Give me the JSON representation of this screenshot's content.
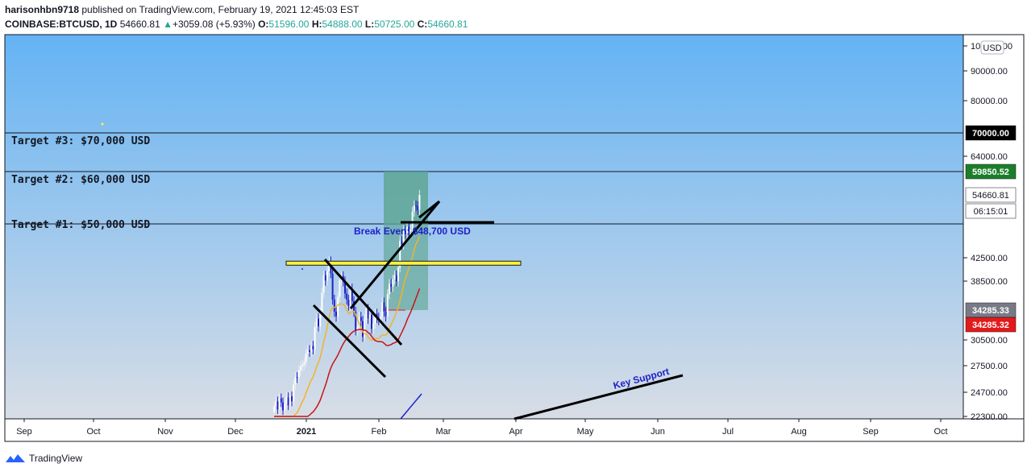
{
  "header": {
    "author": "harisonhbn9718",
    "published_text": "published on TradingView.com, February 19, 2021 12:45:03 EST",
    "symbol": "COINBASE:BTCUSD, 1D",
    "last": "54660.81",
    "change_arrow": "▲",
    "change": "+3059.08 (+5.93%)",
    "o_label": "O:",
    "o_value": "51596.00",
    "h_label": "H:",
    "h_value": "54888.00",
    "l_label": "L:",
    "l_value": "50725.00",
    "c_label": "C:",
    "c_value": "54660.81"
  },
  "chart_data": {
    "type": "candlestick",
    "currency": "USD",
    "x_ticks": [
      "Sep",
      "Oct",
      "Nov",
      "Dec",
      "2021",
      "Feb",
      "Mar",
      "Apr",
      "May",
      "Jun",
      "Jul",
      "Aug",
      "Sep",
      "Oct"
    ],
    "y_ticks": [
      "22300.00",
      "24700.00",
      "27500.00",
      "30500.00",
      "38500.00",
      "42500.00",
      "64000.00",
      "80000.00",
      "90000.00",
      "100000.00"
    ],
    "price_badges": [
      {
        "text": "70000.00",
        "color": "#000000",
        "text_color": "#ffffff"
      },
      {
        "text": "59850.52",
        "color": "#1b7f2a",
        "text_color": "#ffffff"
      },
      {
        "text": "54660.81",
        "color": "#ffffff",
        "text_color": "#131722"
      },
      {
        "text": "06:15:01",
        "color": "#ffffff",
        "text_color": "#131722"
      },
      {
        "text": "34285.33",
        "color": "#787b86",
        "text_color": "#ffffff"
      },
      {
        "text": "34285.32",
        "color": "#e31a1a",
        "text_color": "#ffffff"
      }
    ],
    "annotations": [
      {
        "text": "Target #3: $70,000 USD",
        "price": 70000
      },
      {
        "text": "Target #2: $60,000 USD",
        "price": 59850
      },
      {
        "text": "Target #1: $50,000 USD",
        "price": 48700
      },
      {
        "text": "Break Even: $48,700 USD",
        "price": 48700
      },
      {
        "text": "Key Support"
      }
    ],
    "levels": [
      70000,
      59850,
      48700,
      41500
    ],
    "trade_box": {
      "entry": 48700,
      "target": 59850,
      "stop": 34285
    }
  },
  "footer": {
    "brand": "TradingView"
  },
  "colors": {
    "bg_top": "#64b3f4",
    "bg_bottom": "#d8dde6",
    "axis_bg": "#ffffff",
    "ma_fast": "#f0b428",
    "ma_slow": "#c81414",
    "yellow_zone": "#fff23a",
    "trade_box": "#5fa694"
  }
}
